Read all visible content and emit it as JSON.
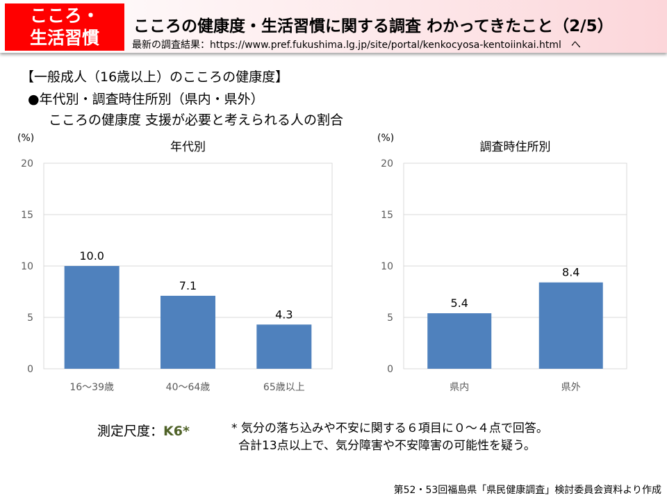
{
  "header": {
    "badge": "こころ・\n生活習慣",
    "badge_line1": "こころ・",
    "badge_line2": "生活習慣",
    "title": "こころの健康度・生活習慣に関する調査 わかってきたこと（2/5）",
    "url_line": "最新の調査結果：https://www.pref.fukushima.lg.jp/site/portal/kenkocyosa-kentoiinkai.html　へ"
  },
  "headings": {
    "section": "【一般成人（16歳以上）のこころの健康度】",
    "sub": "●年代別・調査時住所別（県内・県外）",
    "desc": "こころの健康度 支援が必要と考えられる人の割合"
  },
  "chart_data": [
    {
      "type": "bar",
      "title": "年代別",
      "ylabel": "(%)",
      "categories": [
        "16～39歳",
        "40～64歳",
        "65歳以上"
      ],
      "values": [
        10.0,
        7.1,
        4.3
      ],
      "data_labels": [
        "10.0",
        "7.1",
        "4.3"
      ],
      "ylim": [
        0,
        20
      ],
      "yticks": [
        "0",
        "5",
        "10",
        "15",
        "20"
      ],
      "grid": true,
      "color": "#4f81bd"
    },
    {
      "type": "bar",
      "title": "調査時住所別",
      "ylabel": "(%)",
      "categories": [
        "県内",
        "県外"
      ],
      "values": [
        5.4,
        8.4
      ],
      "data_labels": [
        "5.4",
        "8.4"
      ],
      "ylim": [
        0,
        20
      ],
      "yticks": [
        "0",
        "5",
        "10",
        "15",
        "20"
      ],
      "grid": true,
      "color": "#4f81bd"
    }
  ],
  "notes": {
    "scale_label": "測定尺度：",
    "scale_value": "K6*",
    "line1": "* 気分の落ち込みや不安に関する６項目に０～４点で回答。",
    "line2": "合計13点以上で、気分障害や不安障害の可能性を疑う。",
    "k6_color": "#4f6228"
  },
  "source": "第52・53回福島県「県民健康調査」検討委員会資料より作成"
}
